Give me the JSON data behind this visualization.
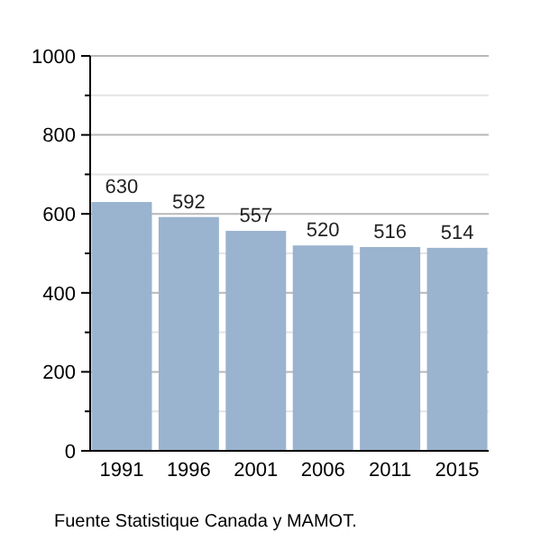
{
  "chart_data": {
    "type": "bar",
    "categories": [
      "1991",
      "1996",
      "2001",
      "2006",
      "2011",
      "2015"
    ],
    "values": [
      630,
      592,
      557,
      520,
      516,
      514
    ],
    "color": "#9ab3cf",
    "data_labels": true,
    "ylim": [
      0,
      1000
    ],
    "yticks": [
      0,
      {
        "value": 100,
        "label": null
      },
      200,
      {
        "value": 300,
        "label": null
      },
      400,
      {
        "value": 500,
        "label": null
      },
      600,
      {
        "value": 700,
        "label": null
      },
      800,
      {
        "value": 900,
        "label": null
      },
      1000
    ],
    "grid": true,
    "annotations": [
      "Fuente Statistique Canada y MAMOT."
    ]
  }
}
